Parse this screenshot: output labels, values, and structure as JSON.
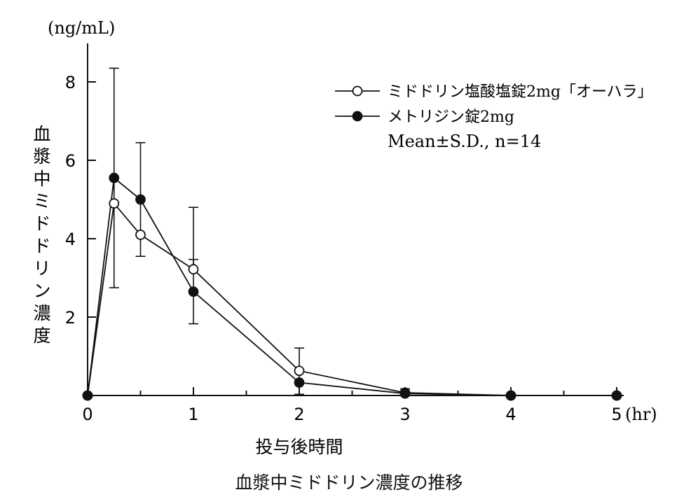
{
  "chart_data": {
    "type": "line",
    "xlabel": "投与後時間",
    "x_unit": "(hr)",
    "ylabel": "血漿中ミドドリン濃度",
    "y_unit": "(ng/mL)",
    "xlim": [
      0,
      5
    ],
    "ylim": [
      0,
      8.5
    ],
    "x_ticks_major": [
      0,
      1,
      2,
      3,
      4,
      5
    ],
    "x_ticks_minor": [
      0.5,
      1.5,
      2.5,
      3.5,
      4.5
    ],
    "y_ticks": [
      2,
      4,
      6,
      8
    ],
    "legend_position": "top-right",
    "legend_note": "Mean±S.D., n=14",
    "series": [
      {
        "name": "ミドドリン塩酸塩錠2mg「オーハラ」",
        "marker": "open-circle",
        "x": [
          0,
          0.25,
          0.5,
          1,
          2,
          3,
          4,
          5
        ],
        "y": [
          0,
          4.9,
          4.1,
          3.22,
          0.63,
          0.07,
          0.0,
          0.0
        ],
        "sd": [
          0,
          0,
          0,
          1.58,
          0.58,
          0,
          0,
          0
        ]
      },
      {
        "name": "メトリジン錠2mg",
        "marker": "filled-circle",
        "x": [
          0,
          0.25,
          0.5,
          1,
          2,
          3,
          4,
          5
        ],
        "y": [
          0,
          5.55,
          5.0,
          2.65,
          0.33,
          0.05,
          0.0,
          0.0
        ],
        "sd": [
          0,
          2.8,
          1.45,
          0.82,
          0.3,
          0.12,
          0,
          0
        ]
      }
    ]
  },
  "caption": "血漿中ミドドリン濃度の推移"
}
